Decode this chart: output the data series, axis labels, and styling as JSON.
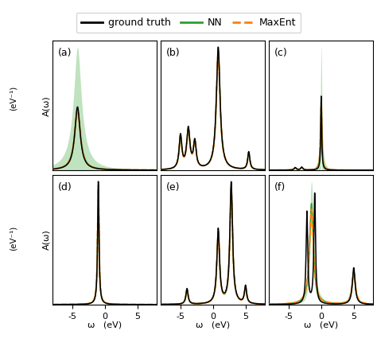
{
  "legend_items": [
    "ground truth",
    "NN",
    "MaxEnt"
  ],
  "gt_color": "#000000",
  "nn_color": "#2ca02c",
  "maxent_color": "#ff7f0e",
  "nn_fill_color": "#2ca02c",
  "nn_fill_alpha": 0.3,
  "panel_labels": [
    "(a)",
    "(b)",
    "(c)",
    "(d)",
    "(e)",
    "(f)"
  ],
  "xlabel": "ω   (eV)",
  "ylabel": "A(ω)",
  "ev_inv_label": "(eV⁻¹)",
  "xlim": [
    -8,
    8
  ],
  "xticks": [
    -5,
    0,
    5
  ],
  "xticklabels": [
    "-5",
    "0",
    "5"
  ]
}
